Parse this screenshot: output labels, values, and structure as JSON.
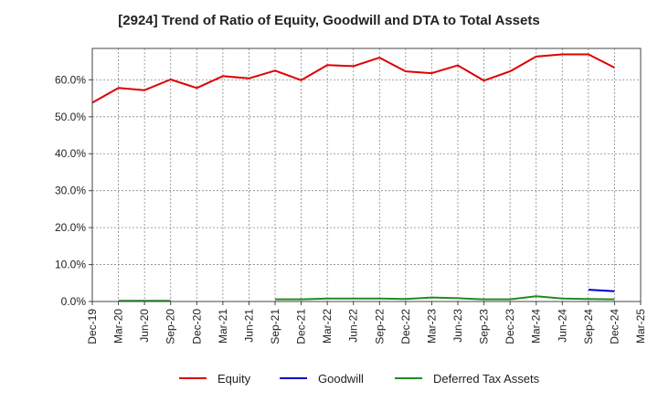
{
  "chart_data": {
    "type": "line",
    "title": "[2924]  Trend of Ratio of Equity, Goodwill and DTA to Total Assets",
    "xlabel": "",
    "ylabel": "",
    "ylim": [
      0,
      68.5
    ],
    "yticks": [
      0,
      10,
      20,
      30,
      40,
      50,
      60
    ],
    "ytick_labels": [
      "0.0%",
      "10.0%",
      "20.0%",
      "30.0%",
      "40.0%",
      "50.0%",
      "60.0%"
    ],
    "grid": true,
    "legend_position": "bottom",
    "categories": [
      "Dec-19",
      "Mar-20",
      "Jun-20",
      "Sep-20",
      "Dec-20",
      "Mar-21",
      "Jun-21",
      "Sep-21",
      "Dec-21",
      "Mar-22",
      "Jun-22",
      "Sep-22",
      "Dec-22",
      "Mar-23",
      "Jun-23",
      "Sep-23",
      "Dec-23",
      "Mar-24",
      "Jun-24",
      "Sep-24",
      "Dec-24",
      "Mar-25"
    ],
    "series": [
      {
        "name": "Equity",
        "color": "#dd0000",
        "values": [
          53.8,
          57.8,
          57.2,
          60.1,
          57.8,
          61.0,
          60.4,
          62.5,
          59.9,
          64.0,
          63.7,
          66.0,
          62.3,
          61.8,
          63.9,
          59.8,
          62.3,
          66.3,
          66.9,
          66.9,
          63.3,
          null
        ]
      },
      {
        "name": "Goodwill",
        "color": "#0000cc",
        "values": [
          null,
          null,
          null,
          null,
          null,
          null,
          null,
          null,
          null,
          null,
          null,
          null,
          null,
          null,
          null,
          null,
          null,
          null,
          null,
          3.2,
          2.8,
          null
        ]
      },
      {
        "name": "Deferred Tax Assets",
        "color": "#228b22",
        "values": [
          null,
          0.2,
          0.2,
          0.2,
          null,
          null,
          null,
          0.6,
          0.6,
          0.8,
          0.8,
          0.8,
          0.7,
          1.1,
          0.9,
          0.6,
          0.6,
          1.4,
          0.8,
          0.7,
          0.6,
          null
        ]
      }
    ]
  }
}
